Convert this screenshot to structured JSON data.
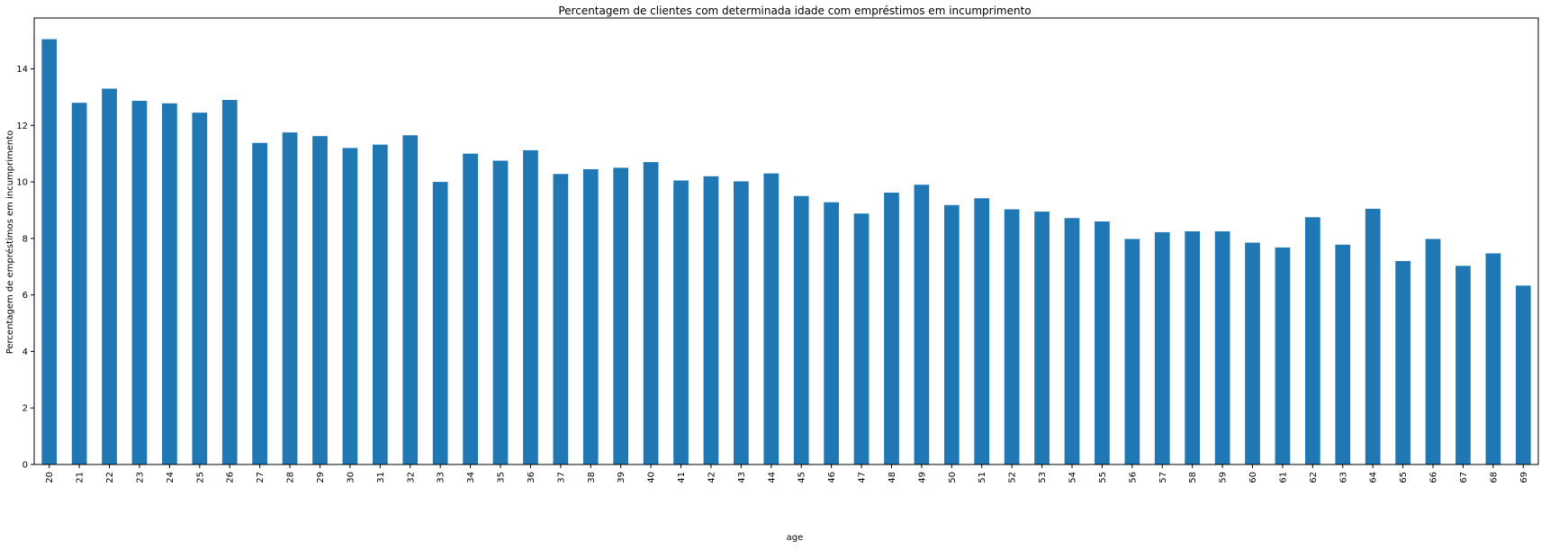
{
  "chart_data": {
    "type": "bar",
    "title": "Percentagem de clientes com determinada idade com empréstimos em incumprimento",
    "xlabel": "age",
    "ylabel": "Percentagem de empréstimos em incumprimento",
    "categories": [
      "20",
      "21",
      "22",
      "23",
      "24",
      "25",
      "26",
      "27",
      "28",
      "29",
      "30",
      "31",
      "32",
      "33",
      "34",
      "35",
      "36",
      "37",
      "38",
      "39",
      "40",
      "41",
      "42",
      "43",
      "44",
      "45",
      "46",
      "47",
      "48",
      "49",
      "50",
      "51",
      "52",
      "53",
      "54",
      "55",
      "56",
      "57",
      "58",
      "59",
      "60",
      "61",
      "62",
      "63",
      "64",
      "65",
      "66",
      "67",
      "68",
      "69"
    ],
    "values": [
      15.05,
      12.8,
      13.3,
      12.87,
      12.78,
      12.45,
      12.9,
      11.38,
      11.75,
      11.62,
      11.2,
      11.32,
      11.65,
      10.0,
      11.0,
      10.75,
      11.12,
      10.28,
      10.45,
      10.5,
      10.7,
      10.05,
      10.2,
      10.02,
      10.3,
      9.5,
      9.28,
      8.88,
      9.62,
      9.9,
      9.18,
      9.42,
      9.03,
      8.95,
      8.72,
      8.6,
      7.98,
      8.22,
      8.25,
      8.25,
      7.85,
      7.68,
      8.75,
      7.78,
      9.05,
      7.2,
      7.98,
      7.03,
      7.47,
      6.33
    ],
    "yticks": [
      "0",
      "2",
      "4",
      "6",
      "8",
      "10",
      "12",
      "14"
    ],
    "ylim": [
      0,
      15.8
    ],
    "grid": false,
    "legend": "none",
    "colors": {
      "bar": "#1f77b4",
      "axis": "#000000"
    }
  }
}
